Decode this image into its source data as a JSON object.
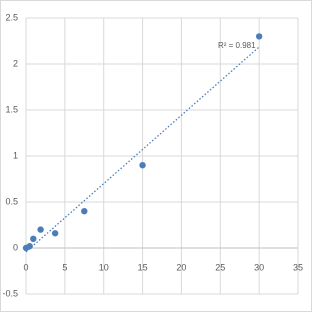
{
  "chart_data": {
    "type": "scatter",
    "annotation": "R² = 0.981",
    "series": [
      {
        "color": "#4a7ebb",
        "x": [
          0,
          0.47,
          0.94,
          1.88,
          3.75,
          7.5,
          15,
          30
        ],
        "values": [
          0,
          0.02,
          0.1,
          0.2,
          0.16,
          0.4,
          0.9,
          2.3
        ]
      }
    ],
    "trendline": "linear",
    "xlim": [
      0,
      35
    ],
    "xticks": [
      0,
      5,
      10,
      15,
      20,
      25,
      30,
      35
    ],
    "ylim": [
      -0.5,
      2.5
    ],
    "yticks": [
      -0.5,
      0,
      0.5,
      1,
      1.5,
      2,
      2.5
    ],
    "grid": true
  }
}
